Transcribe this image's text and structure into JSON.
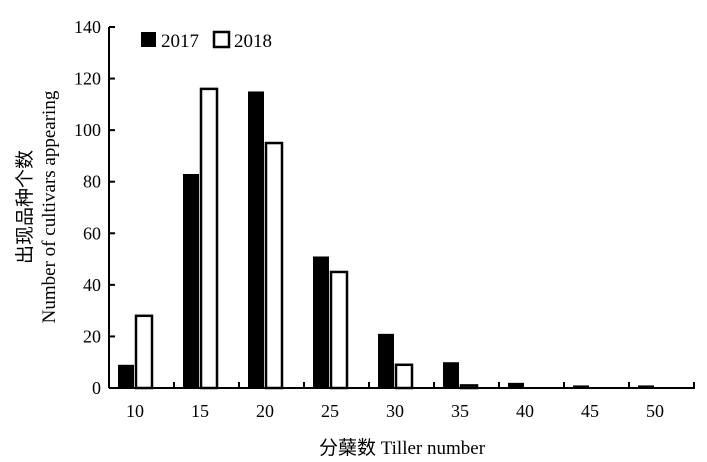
{
  "chart_data": {
    "type": "bar",
    "title": "",
    "xlabel": "分蘖数 Tiller number",
    "ylabel_cn": "出现品种个数",
    "ylabel_en": "Number of cultivars appearing",
    "categories": [
      "10",
      "15",
      "20",
      "25",
      "30",
      "35",
      "40",
      "45",
      "50"
    ],
    "ylim": [
      0,
      140
    ],
    "yticks": [
      0,
      20,
      40,
      60,
      80,
      100,
      120,
      140
    ],
    "grid": false,
    "legend_position": "top-left",
    "series": [
      {
        "name": "2017",
        "values": [
          9,
          83,
          115,
          51,
          21,
          10,
          2,
          1,
          1
        ],
        "color": "#000000",
        "fill": "solid"
      },
      {
        "name": "2018",
        "values": [
          28,
          116,
          95,
          45,
          9,
          1,
          0,
          0,
          0
        ],
        "color": "#ffffff",
        "fill": "hollow"
      }
    ]
  }
}
